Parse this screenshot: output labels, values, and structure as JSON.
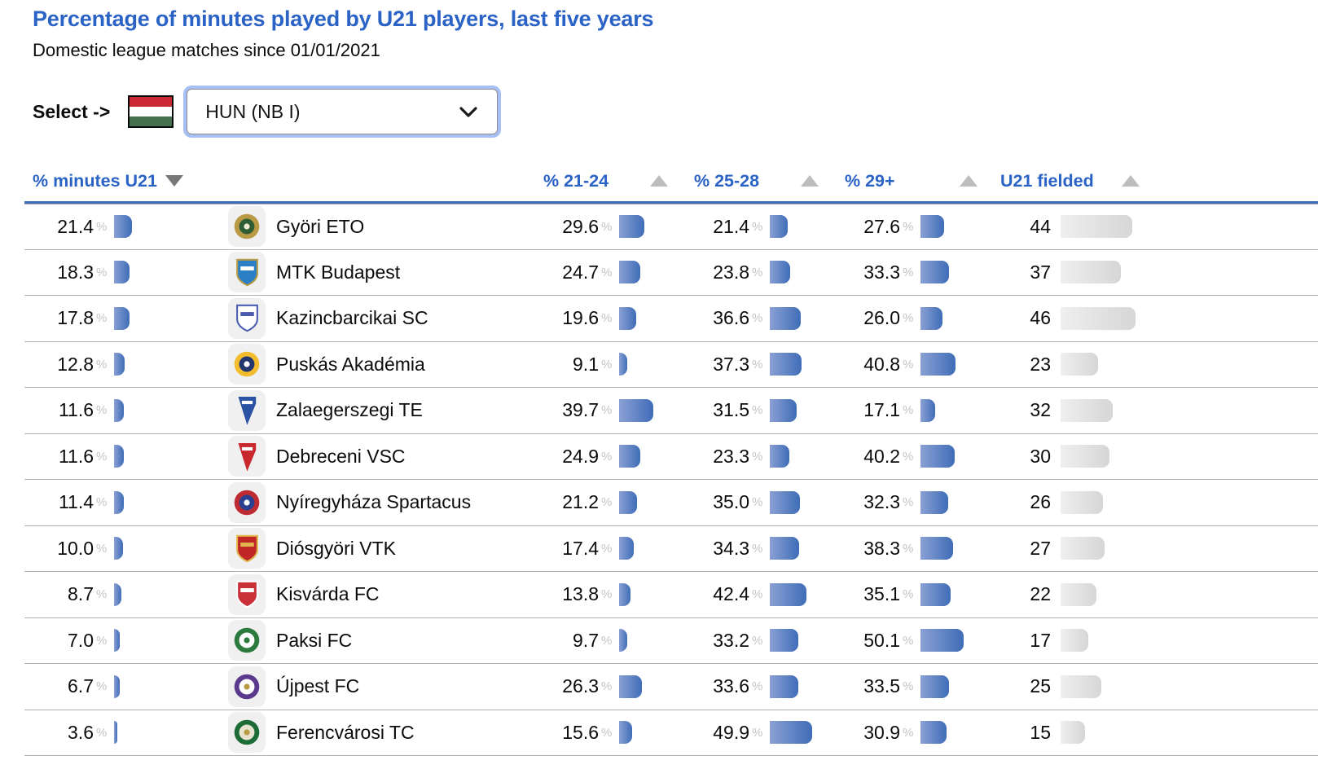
{
  "page": {
    "title": "Percentage of minutes played by U21 players, last five years",
    "subtitle": "Domestic league matches since 01/01/2021"
  },
  "selector": {
    "label": "Select ->",
    "flag": "hungary-flag",
    "value": "HUN (NB I)"
  },
  "colors": {
    "accent_blue": "#2a63c5",
    "table_top_border": "#3e6cb8",
    "bar_blue_start": "#8aa0d4",
    "bar_blue_end": "#3f6db7",
    "bar_gray_start": "#efefef",
    "bar_gray_end": "#d6d6d6",
    "flag_red": "#cc2936",
    "flag_white": "#ffffff",
    "flag_green": "#44724c"
  },
  "table": {
    "unit": "%",
    "columns": [
      {
        "label": "% minutes U21",
        "sort": "descending",
        "sort_icon": "triangle-down"
      },
      {
        "label": "",
        "sort": null,
        "sort_icon": null
      },
      {
        "label": "% 21-24",
        "sort": "none",
        "sort_icon": "triangle-up"
      },
      {
        "label": "% 25-28",
        "sort": "none",
        "sort_icon": "triangle-up"
      },
      {
        "label": "% 29+",
        "sort": "none",
        "sort_icon": "triangle-up"
      },
      {
        "label": "U21 fielded",
        "sort": "none",
        "sort_icon": "triangle-up"
      }
    ],
    "rows": [
      {
        "team": "Györi ETO",
        "minutes_u21": 21.4,
        "pct_21_24": 29.6,
        "pct_25_28": 21.4,
        "pct_29_plus": 27.6,
        "u21_fielded": 44,
        "logo": {
          "shape": "circle",
          "colors": [
            "#b99a45",
            "#2e5d34",
            "#f0ead2"
          ]
        }
      },
      {
        "team": "MTK Budapest",
        "minutes_u21": 18.3,
        "pct_21_24": 24.7,
        "pct_25_28": 23.8,
        "pct_29_plus": 33.3,
        "u21_fielded": 37,
        "logo": {
          "shape": "shield",
          "colors": [
            "#2b7fc4",
            "#ffffff",
            "#b99a45"
          ]
        }
      },
      {
        "team": "Kazincbarcikai SC",
        "minutes_u21": 17.8,
        "pct_21_24": 19.6,
        "pct_25_28": 36.6,
        "pct_29_plus": 26.0,
        "u21_fielded": 46,
        "logo": {
          "shape": "shield",
          "colors": [
            "#ffffff",
            "#4a5cb0",
            "#4a5cb0"
          ]
        }
      },
      {
        "team": "Puskás Akadémia",
        "minutes_u21": 12.8,
        "pct_21_24": 9.1,
        "pct_25_28": 37.3,
        "pct_29_plus": 40.8,
        "u21_fielded": 23,
        "logo": {
          "shape": "circle",
          "colors": [
            "#f3bc2f",
            "#24366e",
            "#ffffff"
          ]
        }
      },
      {
        "team": "Zalaegerszegi TE",
        "minutes_u21": 11.6,
        "pct_21_24": 39.7,
        "pct_25_28": 31.5,
        "pct_29_plus": 17.1,
        "u21_fielded": 32,
        "logo": {
          "shape": "pennant",
          "colors": [
            "#2b52a3",
            "#ffffff",
            "#2b52a3"
          ]
        }
      },
      {
        "team": "Debreceni VSC",
        "minutes_u21": 11.6,
        "pct_21_24": 24.9,
        "pct_25_28": 23.3,
        "pct_29_plus": 40.2,
        "u21_fielded": 30,
        "logo": {
          "shape": "pennant",
          "colors": [
            "#c8282e",
            "#ffffff",
            "#c8282e"
          ]
        }
      },
      {
        "team": "Nyíregyháza Spartacus",
        "minutes_u21": 11.4,
        "pct_21_24": 21.2,
        "pct_25_28": 35.0,
        "pct_29_plus": 32.3,
        "u21_fielded": 26,
        "logo": {
          "shape": "circle",
          "colors": [
            "#bf2b33",
            "#2b3f8f",
            "#ffffff"
          ]
        }
      },
      {
        "team": "Diósgyöri VTK",
        "minutes_u21": 10.0,
        "pct_21_24": 17.4,
        "pct_25_28": 34.3,
        "pct_29_plus": 38.3,
        "u21_fielded": 27,
        "logo": {
          "shape": "shield",
          "colors": [
            "#c02626",
            "#e0b64e",
            "#e0b64e"
          ]
        }
      },
      {
        "team": "Kisvárda FC",
        "minutes_u21": 8.7,
        "pct_21_24": 13.8,
        "pct_25_28": 42.4,
        "pct_29_plus": 35.1,
        "u21_fielded": 22,
        "logo": {
          "shape": "shield",
          "colors": [
            "#c93038",
            "#ffffff",
            "#ffffff"
          ]
        }
      },
      {
        "team": "Paksi FC",
        "minutes_u21": 7.0,
        "pct_21_24": 9.7,
        "pct_25_28": 33.2,
        "pct_29_plus": 50.1,
        "u21_fielded": 17,
        "logo": {
          "shape": "circle",
          "colors": [
            "#2c7a3e",
            "#ffffff",
            "#2c7a3e"
          ]
        }
      },
      {
        "team": "Újpest FC",
        "minutes_u21": 6.7,
        "pct_21_24": 26.3,
        "pct_25_28": 33.6,
        "pct_29_plus": 33.5,
        "u21_fielded": 25,
        "logo": {
          "shape": "circle",
          "colors": [
            "#5b3a8e",
            "#ffffff",
            "#b99a45"
          ]
        }
      },
      {
        "team": "Ferencvárosi TC",
        "minutes_u21": 3.6,
        "pct_21_24": 15.6,
        "pct_25_28": 49.9,
        "pct_29_plus": 30.9,
        "u21_fielded": 15,
        "logo": {
          "shape": "circle",
          "colors": [
            "#1d6b35",
            "#e7e3cf",
            "#b99a45"
          ]
        }
      }
    ]
  }
}
